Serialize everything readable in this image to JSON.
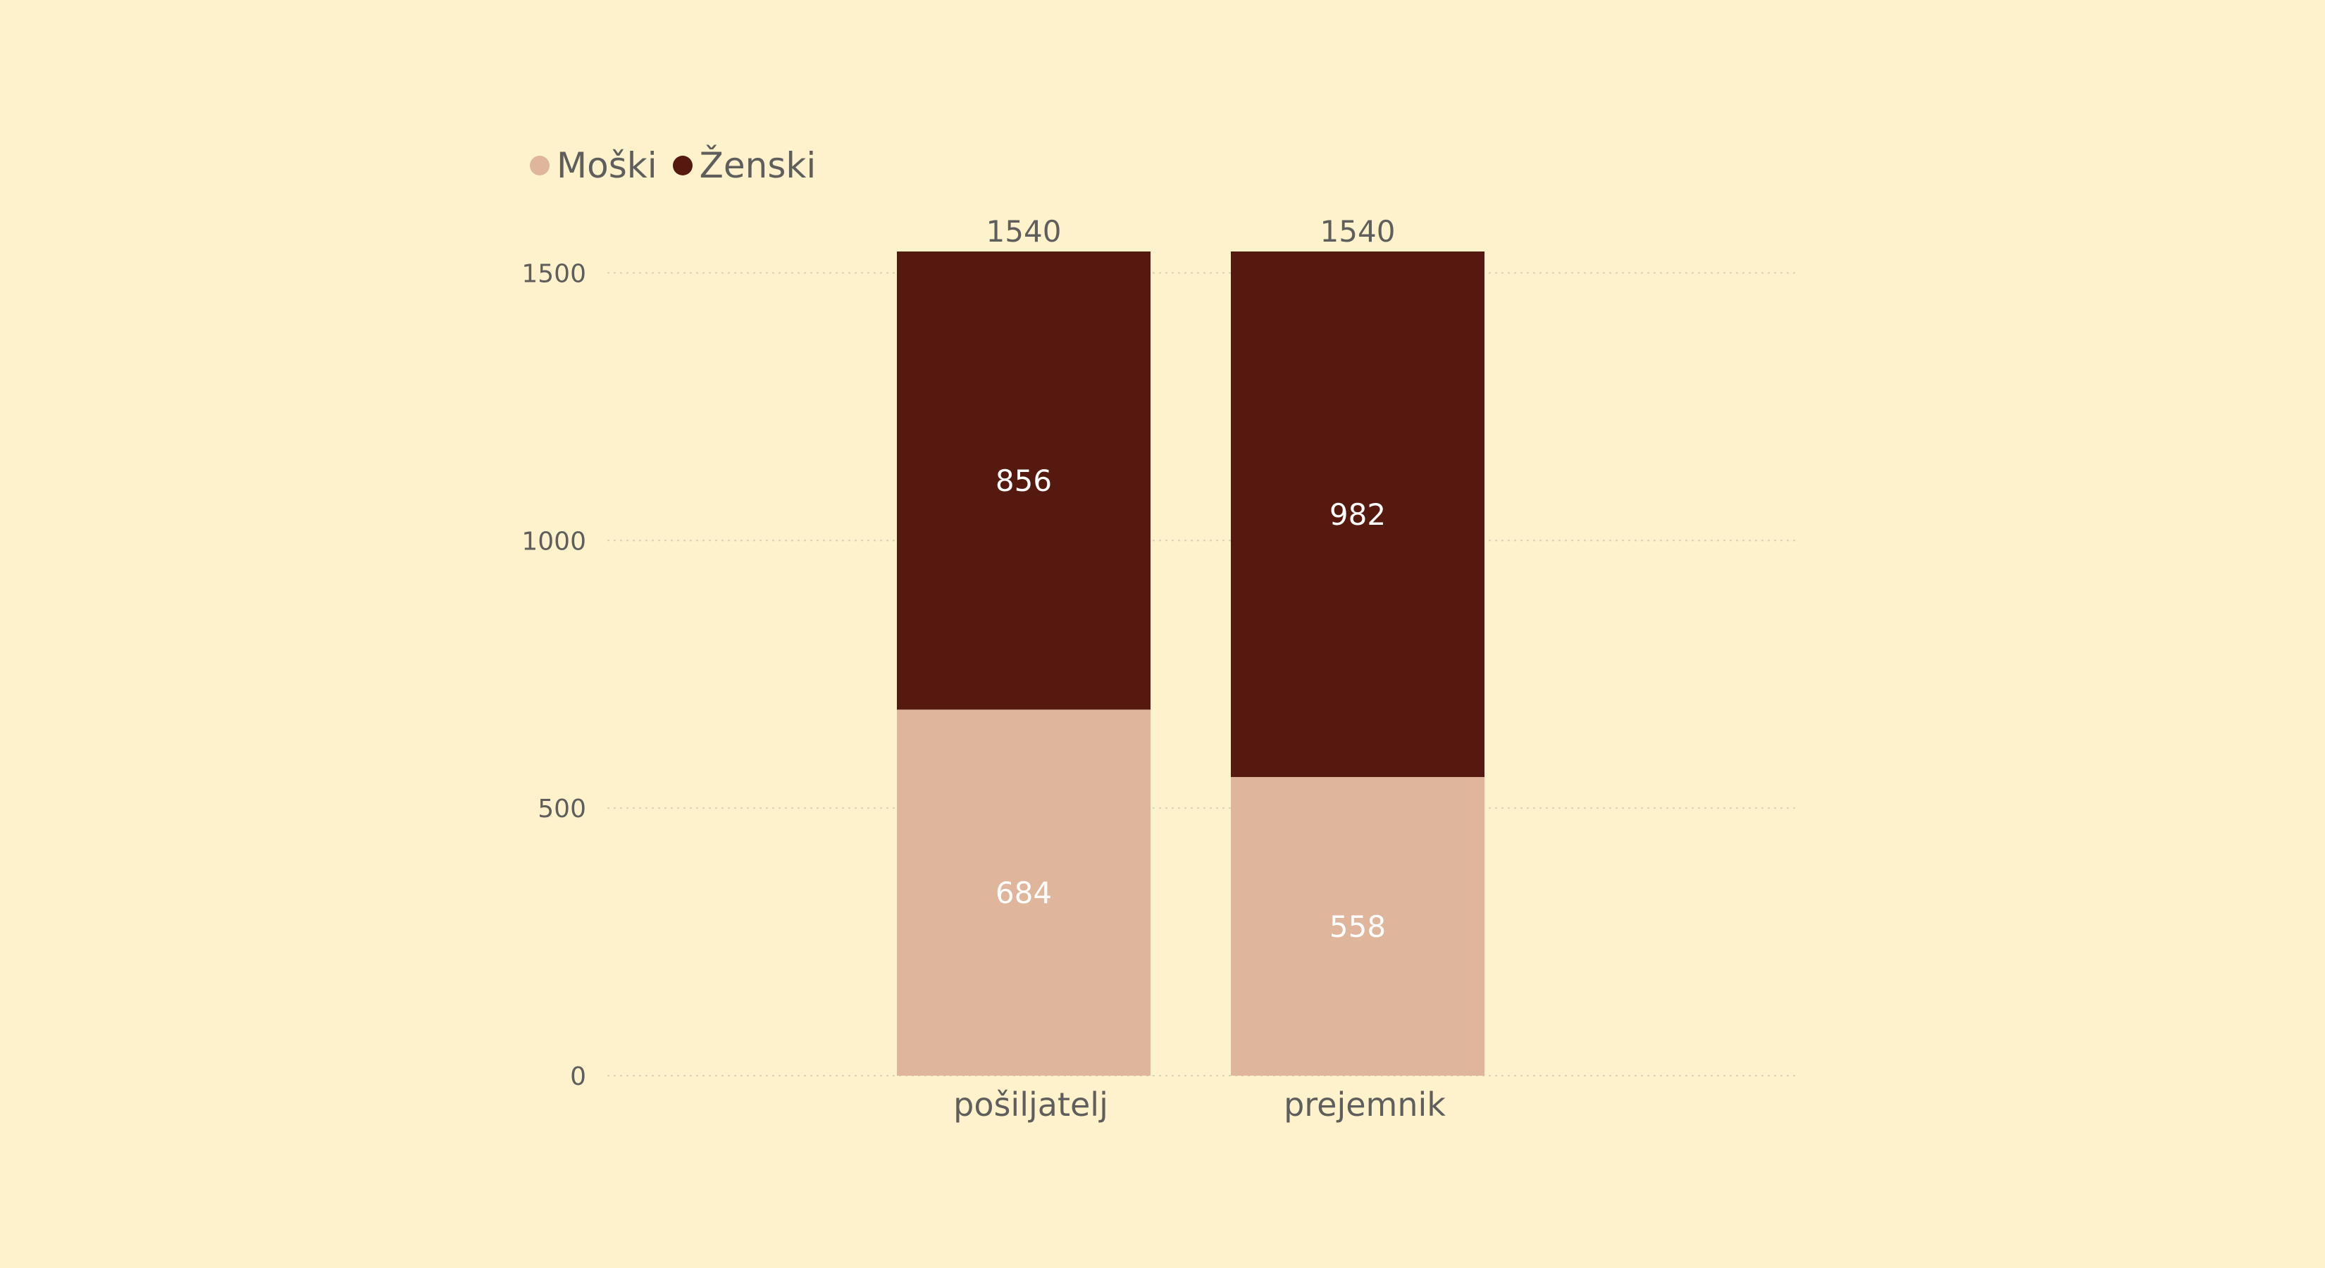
{
  "chart_data": {
    "type": "bar",
    "stacked": true,
    "categories": [
      "pošiljatelj",
      "prejemnik"
    ],
    "series": [
      {
        "name": "Moški",
        "values": [
          684,
          558
        ],
        "color": "#dfb59c"
      },
      {
        "name": "Ženski",
        "values": [
          856,
          982
        ],
        "color": "#56190f"
      }
    ],
    "totals": [
      1540,
      1540
    ],
    "yticks": [
      0,
      500,
      1000,
      1500
    ],
    "ylim": [
      0,
      1540
    ],
    "grid": true,
    "legend_position": "top-left",
    "title": "",
    "xlabel": "",
    "ylabel": ""
  }
}
